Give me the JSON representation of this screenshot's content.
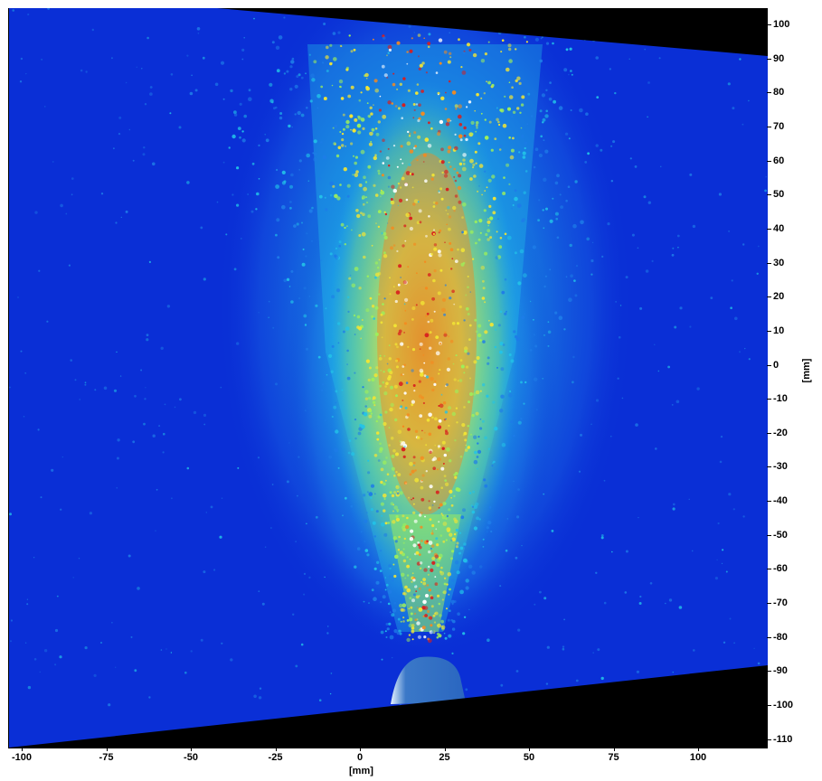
{
  "image": {
    "description_kind": "false-color spray/particle intensity image",
    "colormap": [
      "#0a2fd6",
      "#1e7ce8",
      "#22c3e8",
      "#9ef05a",
      "#f2e534",
      "#f58a1f",
      "#d81e1e",
      "#ffffff"
    ],
    "frame_fill_color": "#000000"
  },
  "axes": {
    "x_title": "[mm]",
    "y_title": "[mm]",
    "x_ticks": [
      "-100",
      "-75",
      "-50",
      "-25",
      "0",
      "25",
      "50",
      "75",
      "100"
    ],
    "y_ticks": [
      "100",
      "90",
      "80",
      "70",
      "60",
      "50",
      "40",
      "30",
      "20",
      "10",
      "0",
      "-10",
      "-20",
      "-30",
      "-40",
      "-50",
      "-60",
      "-70",
      "-80",
      "-90",
      "-100",
      "-110"
    ]
  }
}
